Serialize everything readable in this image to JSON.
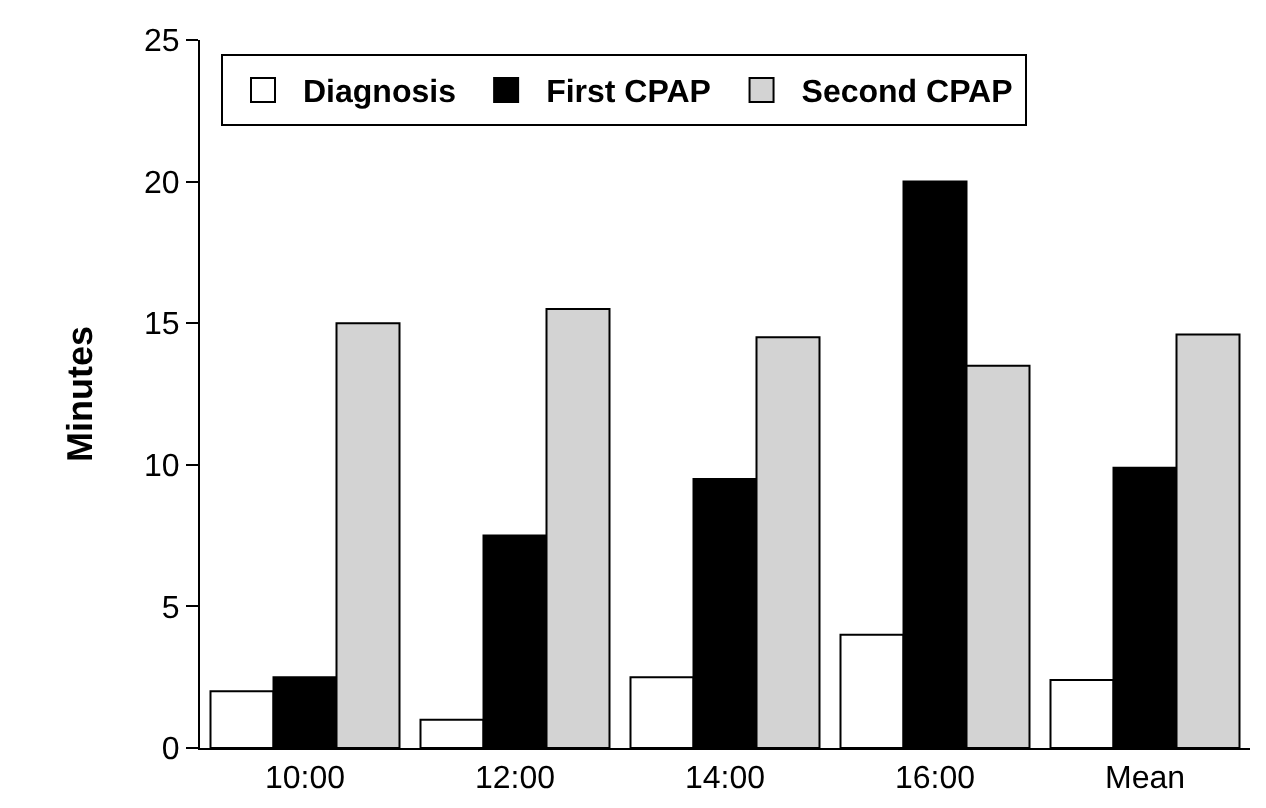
{
  "chart_data": {
    "type": "bar",
    "ylabel": "Minutes",
    "categories": [
      "10:00",
      "12:00",
      "14:00",
      "16:00",
      "Mean"
    ],
    "series": [
      {
        "name": "Diagnosis",
        "color": "#ffffff",
        "values": [
          2,
          1,
          2.5,
          4,
          2.4
        ]
      },
      {
        "name": "First CPAP",
        "color": "#000000",
        "values": [
          2.5,
          7.5,
          9.5,
          20,
          9.9
        ]
      },
      {
        "name": "Second CPAP",
        "color": "#d3d3d3",
        "values": [
          15,
          15.5,
          14.5,
          13.5,
          14.6
        ]
      }
    ],
    "ylim": [
      0,
      25
    ],
    "yticks": [
      0,
      5,
      10,
      15,
      20,
      25
    ],
    "grid": false,
    "legend": "top left"
  }
}
